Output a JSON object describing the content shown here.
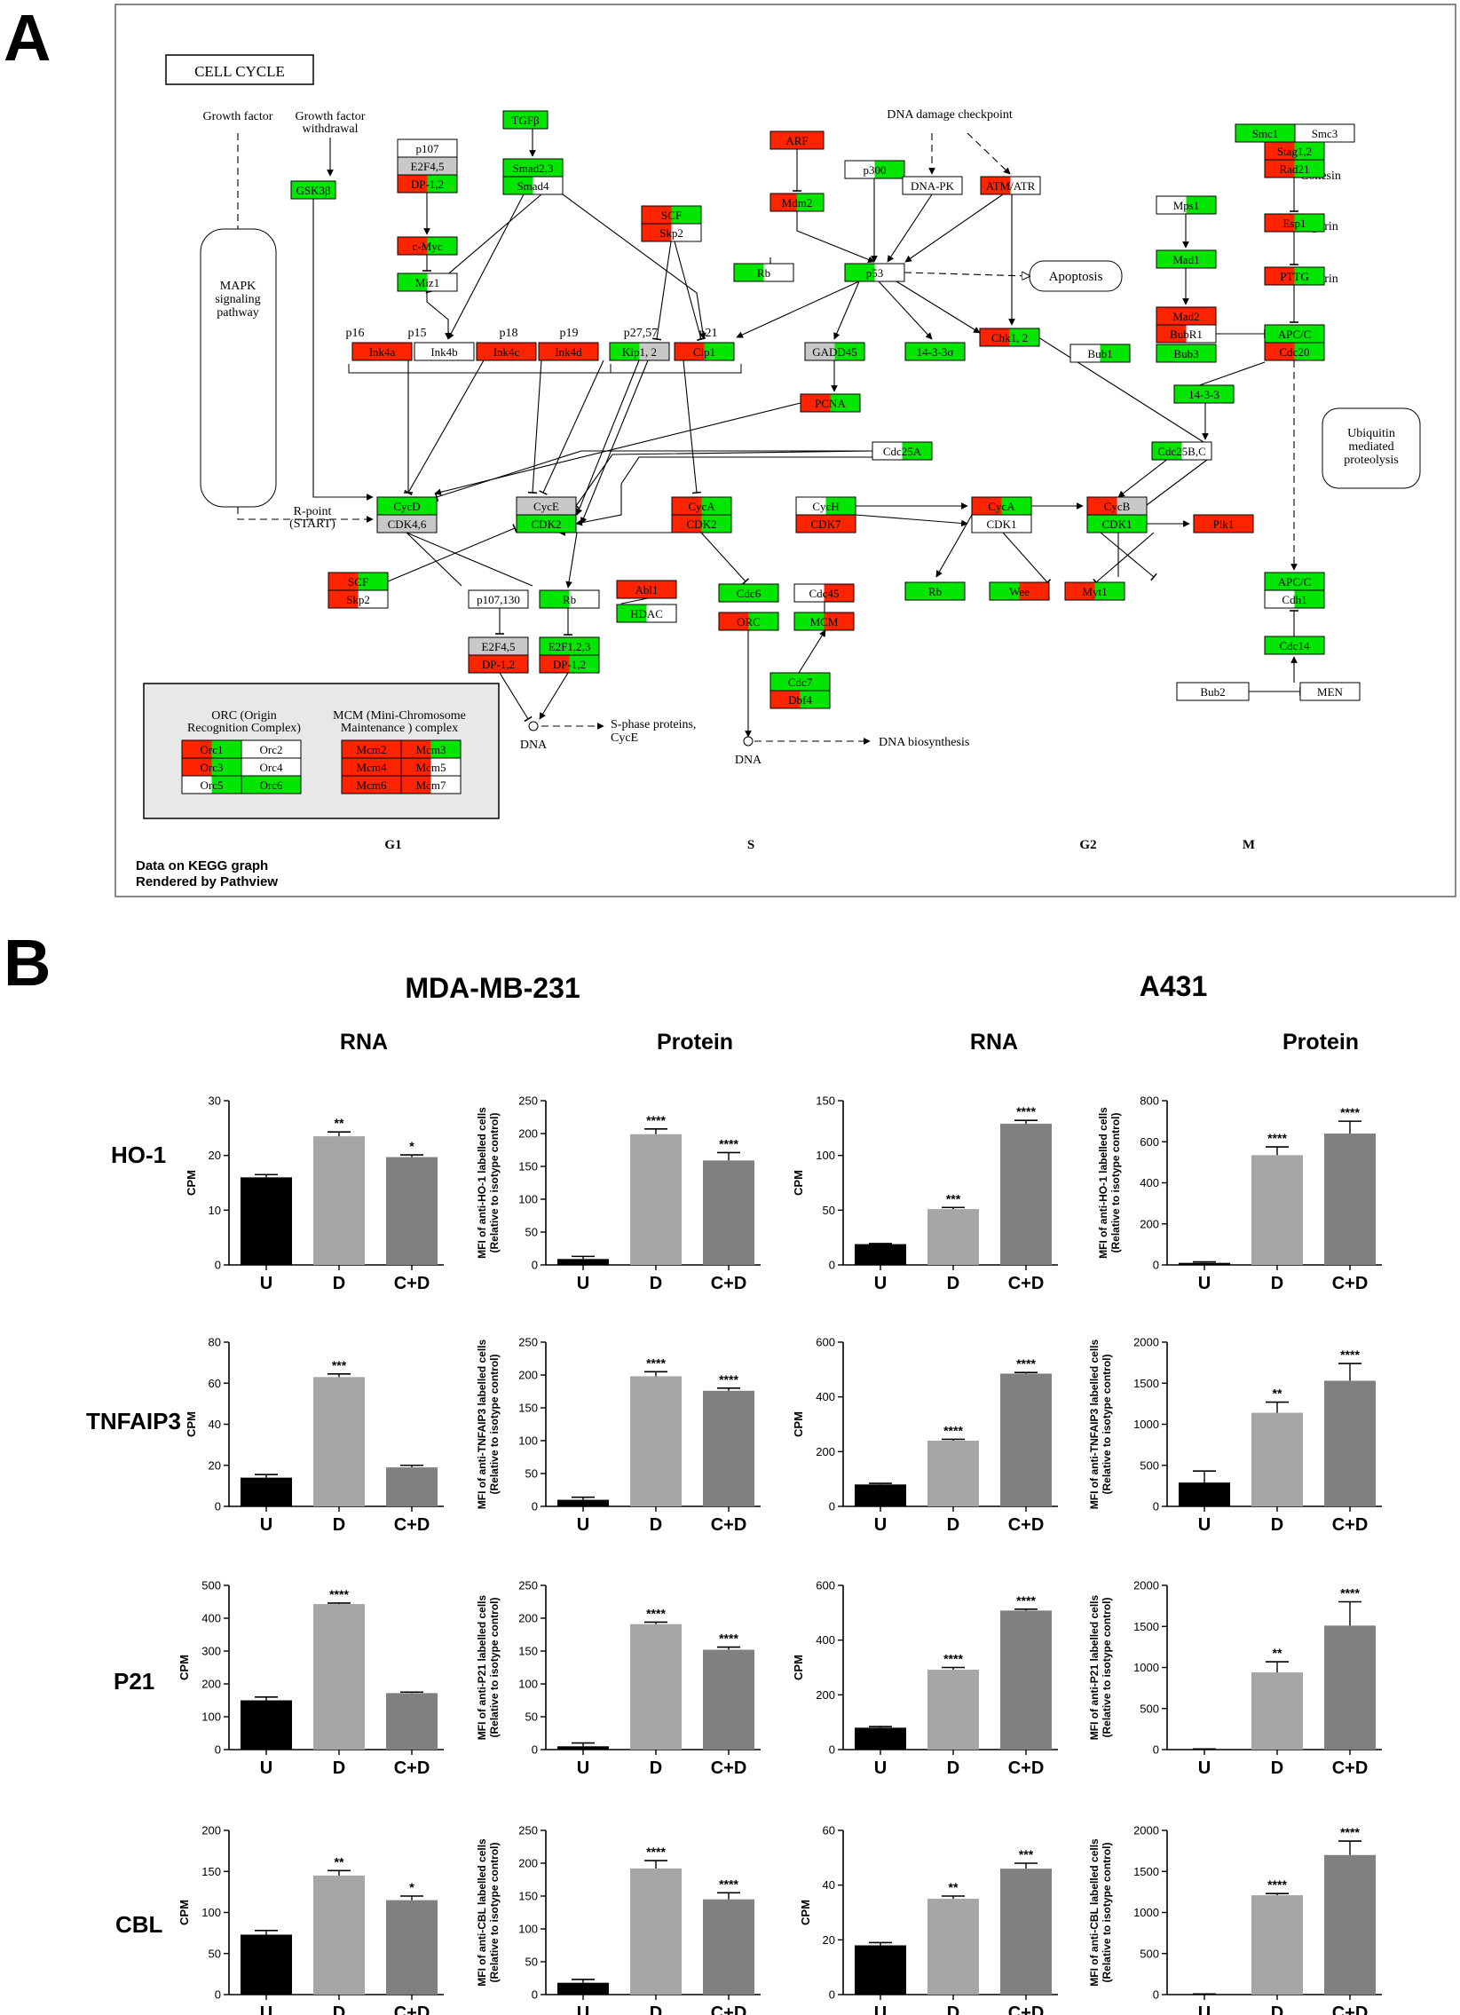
{
  "panels": {
    "a_label": "A",
    "b_label": "B"
  },
  "kegg": {
    "title": "CELL CYCLE",
    "footer_1": "Data on KEGG graph",
    "footer_2": "Rendered by Pathview",
    "phase_g1": "G1",
    "phase_s": "S",
    "phase_g2": "G2",
    "phase_m": "M",
    "labels": {
      "growth_factor": "Growth factor",
      "growth_factor_withdrawal_1": "Growth factor",
      "growth_factor_withdrawal_2": "withdrawal",
      "mapk_1": "MAPK",
      "mapk_2": "signaling",
      "mapk_3": "pathway",
      "dna_damage": "DNA damage checkpoint",
      "apoptosis": "Apoptosis",
      "cohesin": "Cohesin",
      "separin": "Separin",
      "securin": "Securin",
      "ubiquitin_1": "Ubiquitin",
      "ubiquitin_2": "mediated",
      "ubiquitin_3": "proteolysis",
      "r_point_1": "R-point",
      "r_point_2": "(START)",
      "dna_1": "DNA",
      "dna_2": "DNA",
      "s_phase_proteins_1": "S-phase proteins,",
      "s_phase_proteins_2": "CycE",
      "dna_biosynthesis": "DNA biosynthesis",
      "p16": "p16",
      "p15": "p15",
      "p18": "p18",
      "p19": "p19",
      "p27_57": "p27,57",
      "p21": "p21",
      "orc_legend_1": "ORC (Origin",
      "orc_legend_2": "Recognition Complex)",
      "mcm_legend_1": "MCM (Mini-Chromosome",
      "mcm_legend_2": "Maintenance ) complex"
    },
    "colors": {
      "red": "#ff2400",
      "green": "#00e600",
      "grey": "#c8c8c8",
      "white": "#ffffff"
    },
    "nodes": [
      {
        "t": "GSK3β",
        "c": [
          "g",
          "g"
        ]
      },
      {
        "t": "TGFβ",
        "c": [
          "g",
          "g"
        ]
      },
      {
        "t": "p107",
        "c": [
          "w",
          "w"
        ]
      },
      {
        "t": "E2F4,5",
        "c": [
          "y",
          "y"
        ]
      },
      {
        "t": "DP-1,2",
        "c": [
          "r",
          "g"
        ]
      },
      {
        "t": "Smad2,3",
        "c": [
          "g",
          "g"
        ]
      },
      {
        "t": "Smad4",
        "c": [
          "g",
          "w"
        ]
      },
      {
        "t": "c-Myc",
        "c": [
          "r",
          "g"
        ]
      },
      {
        "t": "Miz1",
        "c": [
          "g",
          "w"
        ]
      },
      {
        "t": "ARF",
        "c": [
          "r",
          "r"
        ]
      },
      {
        "t": "Mdm2",
        "c": [
          "r",
          "g"
        ]
      },
      {
        "t": "p300",
        "c": [
          "w",
          "g"
        ]
      },
      {
        "t": "DNA-PK",
        "c": [
          "w",
          "w"
        ]
      },
      {
        "t": "ATM/ATR",
        "c": [
          "r",
          "w"
        ]
      },
      {
        "t": "SCF",
        "c": [
          "r",
          "g"
        ]
      },
      {
        "t": "Skp2",
        "c": [
          "r",
          "w"
        ]
      },
      {
        "t": "Rb",
        "c": [
          "g",
          "w"
        ]
      },
      {
        "t": "p53",
        "c": [
          "g",
          "w"
        ]
      },
      {
        "t": "Ink4a",
        "c": [
          "r",
          "r"
        ]
      },
      {
        "t": "Ink4b",
        "c": [
          "w",
          "w"
        ]
      },
      {
        "t": "Ink4c",
        "c": [
          "r",
          "r"
        ]
      },
      {
        "t": "Ink4d",
        "c": [
          "r",
          "r"
        ]
      },
      {
        "t": "Kip1, 2",
        "c": [
          "g",
          "y"
        ]
      },
      {
        "t": "Cip1",
        "c": [
          "r",
          "g"
        ]
      },
      {
        "t": "GADD45",
        "c": [
          "y",
          "g"
        ]
      },
      {
        "t": "14-3-3σ",
        "c": [
          "g",
          "g"
        ]
      },
      {
        "t": "Chk1, 2",
        "c": [
          "r",
          "g"
        ]
      },
      {
        "t": "PCNA",
        "c": [
          "r",
          "g"
        ]
      },
      {
        "t": "Cdc25A",
        "c": [
          "w",
          "g"
        ]
      },
      {
        "t": "Smc1",
        "c": [
          "g",
          "g"
        ]
      },
      {
        "t": "Smc3",
        "c": [
          "w",
          "w"
        ]
      },
      {
        "t": "Stag1,2",
        "c": [
          "r",
          "g"
        ]
      },
      {
        "t": "Rad21",
        "c": [
          "r",
          "g"
        ]
      },
      {
        "t": "Mps1",
        "c": [
          "w",
          "g"
        ]
      },
      {
        "t": "Mad1",
        "c": [
          "g",
          "g"
        ]
      },
      {
        "t": "Esp1",
        "c": [
          "r",
          "g"
        ]
      },
      {
        "t": "PTTG",
        "c": [
          "r",
          "g"
        ]
      },
      {
        "t": "Mad2",
        "c": [
          "r",
          "r"
        ]
      },
      {
        "t": "BubR1",
        "c": [
          "r",
          "w"
        ]
      },
      {
        "t": "Bub1",
        "c": [
          "w",
          "g"
        ]
      },
      {
        "t": "Bub3",
        "c": [
          "g",
          "g"
        ]
      },
      {
        "t": "APC/C",
        "c": [
          "g",
          "g"
        ]
      },
      {
        "t": "Cdc20",
        "c": [
          "r",
          "g"
        ]
      },
      {
        "t": "14-3-3",
        "c": [
          "g",
          "g"
        ]
      },
      {
        "t": "Cdc25B,C",
        "c": [
          "g",
          "w"
        ]
      },
      {
        "t": "CycD",
        "c": [
          "g",
          "g"
        ]
      },
      {
        "t": "CDK4,6",
        "c": [
          "y",
          "y"
        ]
      },
      {
        "t": "CycE",
        "c": [
          "y",
          "y"
        ]
      },
      {
        "t": "CDK2",
        "c": [
          "g",
          "g"
        ]
      },
      {
        "t": "CycA",
        "c": [
          "r",
          "g"
        ]
      },
      {
        "t": "CDK2",
        "c": [
          "r",
          "g"
        ]
      },
      {
        "t": "CycH",
        "c": [
          "w",
          "g"
        ]
      },
      {
        "t": "CDK7",
        "c": [
          "r",
          "r"
        ]
      },
      {
        "t": "CycA",
        "c": [
          "r",
          "g"
        ]
      },
      {
        "t": "CDK1",
        "c": [
          "w",
          "w"
        ]
      },
      {
        "t": "CycB",
        "c": [
          "r",
          "y"
        ]
      },
      {
        "t": "CDK1",
        "c": [
          "g",
          "g"
        ]
      },
      {
        "t": "Plk1",
        "c": [
          "r",
          "r"
        ]
      },
      {
        "t": "SCF",
        "c": [
          "r",
          "g"
        ]
      },
      {
        "t": "Skp2",
        "c": [
          "r",
          "w"
        ]
      },
      {
        "t": "p107,130",
        "c": [
          "w",
          "w"
        ]
      },
      {
        "t": "Rb",
        "c": [
          "g",
          "w"
        ]
      },
      {
        "t": "Abl1",
        "c": [
          "r",
          "r"
        ]
      },
      {
        "t": "HDAC",
        "c": [
          "g",
          "w"
        ]
      },
      {
        "t": "Cdc6",
        "c": [
          "g",
          "g"
        ]
      },
      {
        "t": "Cdc45",
        "c": [
          "w",
          "r"
        ]
      },
      {
        "t": "ORC",
        "c": [
          "r",
          "g"
        ]
      },
      {
        "t": "MCM",
        "c": [
          "g",
          "r"
        ]
      },
      {
        "t": "Rb",
        "c": [
          "g",
          "g"
        ]
      },
      {
        "t": "Wee",
        "c": [
          "g",
          "r"
        ]
      },
      {
        "t": "Myt1",
        "c": [
          "r",
          "g"
        ]
      },
      {
        "t": "E2F4,5",
        "c": [
          "y",
          "y"
        ]
      },
      {
        "t": "DP-1,2",
        "c": [
          "r",
          "r"
        ]
      },
      {
        "t": "E2F1,2,3",
        "c": [
          "g",
          "g"
        ]
      },
      {
        "t": "DP-1,2",
        "c": [
          "r",
          "g"
        ]
      },
      {
        "t": "Cdc7",
        "c": [
          "g",
          "g"
        ]
      },
      {
        "t": "Dbf4",
        "c": [
          "r",
          "g"
        ]
      },
      {
        "t": "APC/C",
        "c": [
          "g",
          "g"
        ]
      },
      {
        "t": "Cdh1",
        "c": [
          "w",
          "g"
        ]
      },
      {
        "t": "Cdc14",
        "c": [
          "g",
          "g"
        ]
      },
      {
        "t": "Bub2",
        "c": [
          "w",
          "w"
        ]
      },
      {
        "t": "MEN",
        "c": [
          "w",
          "w"
        ]
      },
      {
        "t": "Orc1",
        "c": [
          "r",
          "g"
        ]
      },
      {
        "t": "Orc2",
        "c": [
          "w",
          "w"
        ]
      },
      {
        "t": "Orc3",
        "c": [
          "r",
          "g"
        ]
      },
      {
        "t": "Orc4",
        "c": [
          "w",
          "w"
        ]
      },
      {
        "t": "Orc5",
        "c": [
          "w",
          "g"
        ]
      },
      {
        "t": "Orc6",
        "c": [
          "g",
          "g"
        ]
      },
      {
        "t": "Mcm2",
        "c": [
          "r",
          "r"
        ]
      },
      {
        "t": "Mcm3",
        "c": [
          "r",
          "g"
        ]
      },
      {
        "t": "Mcm4",
        "c": [
          "r",
          "r"
        ]
      },
      {
        "t": "Mcm5",
        "c": [
          "r",
          "w"
        ]
      },
      {
        "t": "Mcm6",
        "c": [
          "r",
          "r"
        ]
      },
      {
        "t": "Mcm7",
        "c": [
          "r",
          "w"
        ]
      }
    ]
  },
  "figure_b": {
    "cell_lines": [
      "MDA-MB-231",
      "A431"
    ],
    "column_types": [
      "RNA",
      "Protein",
      "RNA",
      "Protein"
    ],
    "genes": [
      "HO-1",
      "TNFAIP3",
      "P21",
      "CBL"
    ],
    "categories": [
      "U",
      "D",
      "C+D"
    ],
    "bar_colors": [
      "#000000",
      "#a6a6a6",
      "#808080"
    ]
  },
  "chart_data": [
    {
      "type": "bar",
      "gene": "HO-1",
      "cell_line": "MDA-MB-231",
      "measure": "RNA",
      "categories": [
        "U",
        "D",
        "C+D"
      ],
      "values": [
        16,
        23.5,
        19.7
      ],
      "errors": [
        0.5,
        0.8,
        0.4
      ],
      "significance": [
        "",
        "**",
        "*"
      ],
      "ylabel": "CPM",
      "ylim": [
        0,
        30
      ],
      "yticks": [
        0,
        10,
        20,
        30
      ]
    },
    {
      "type": "bar",
      "gene": "HO-1",
      "cell_line": "MDA-MB-231",
      "measure": "Protein",
      "categories": [
        "U",
        "D",
        "C+D"
      ],
      "values": [
        9,
        199,
        159
      ],
      "errors": [
        4,
        8,
        12
      ],
      "significance": [
        "",
        "****",
        "****"
      ],
      "ylabel": "MFI of anti-HO-1 labelled cells (Relative to isotype control)",
      "ylim": [
        0,
        250
      ],
      "yticks": [
        0,
        50,
        100,
        150,
        200,
        250
      ]
    },
    {
      "type": "bar",
      "gene": "HO-1",
      "cell_line": "A431",
      "measure": "RNA",
      "categories": [
        "U",
        "D",
        "C+D"
      ],
      "values": [
        19,
        51,
        129
      ],
      "errors": [
        0.5,
        1.5,
        3
      ],
      "significance": [
        "",
        "***",
        "****"
      ],
      "ylabel": "CPM",
      "ylim": [
        0,
        150
      ],
      "yticks": [
        0,
        50,
        100,
        150
      ]
    },
    {
      "type": "bar",
      "gene": "HO-1",
      "cell_line": "A431",
      "measure": "Protein",
      "categories": [
        "U",
        "D",
        "C+D"
      ],
      "values": [
        10,
        535,
        640
      ],
      "errors": [
        5,
        40,
        60
      ],
      "significance": [
        "",
        "****",
        "****"
      ],
      "ylabel": "MFI of anti-HO-1 labelled cells (Relative to isotype control)",
      "ylim": [
        0,
        800
      ],
      "yticks": [
        0,
        200,
        400,
        600,
        800
      ]
    },
    {
      "type": "bar",
      "gene": "TNFAIP3",
      "cell_line": "MDA-MB-231",
      "measure": "RNA",
      "categories": [
        "U",
        "D",
        "C+D"
      ],
      "values": [
        14,
        63,
        19
      ],
      "errors": [
        1.5,
        1.5,
        1
      ],
      "significance": [
        "",
        "***",
        ""
      ],
      "ylabel": "CPM",
      "ylim": [
        0,
        80
      ],
      "yticks": [
        0,
        20,
        40,
        60,
        80
      ]
    },
    {
      "type": "bar",
      "gene": "TNFAIP3",
      "cell_line": "MDA-MB-231",
      "measure": "Protein",
      "categories": [
        "U",
        "D",
        "C+D"
      ],
      "values": [
        10,
        198,
        176
      ],
      "errors": [
        4,
        7,
        4
      ],
      "significance": [
        "",
        "****",
        "****"
      ],
      "ylabel": "MFI of anti-TNFAIP3 labelled cells (Relative to isotype control)",
      "ylim": [
        0,
        250
      ],
      "yticks": [
        0,
        50,
        100,
        150,
        200,
        250
      ]
    },
    {
      "type": "bar",
      "gene": "TNFAIP3",
      "cell_line": "A431",
      "measure": "RNA",
      "categories": [
        "U",
        "D",
        "C+D"
      ],
      "values": [
        80,
        240,
        485
      ],
      "errors": [
        4,
        5,
        4
      ],
      "significance": [
        "",
        "****",
        "****"
      ],
      "ylabel": "CPM",
      "ylim": [
        0,
        600
      ],
      "yticks": [
        0,
        200,
        400,
        600
      ]
    },
    {
      "type": "bar",
      "gene": "TNFAIP3",
      "cell_line": "A431",
      "measure": "Protein",
      "categories": [
        "U",
        "D",
        "C+D"
      ],
      "values": [
        290,
        1140,
        1530
      ],
      "errors": [
        140,
        130,
        210
      ],
      "significance": [
        "",
        "**",
        "****"
      ],
      "ylabel": "MFI of anti-TNFAIP3 labelled cells (Relative to isotype control)",
      "ylim": [
        0,
        2000
      ],
      "yticks": [
        0,
        500,
        1000,
        1500,
        2000
      ]
    },
    {
      "type": "bar",
      "gene": "P21",
      "cell_line": "MDA-MB-231",
      "measure": "RNA",
      "categories": [
        "U",
        "D",
        "C+D"
      ],
      "values": [
        150,
        443,
        172
      ],
      "errors": [
        10,
        3,
        3
      ],
      "significance": [
        "",
        "****",
        ""
      ],
      "ylabel": "CPM",
      "ylim": [
        0,
        500
      ],
      "yticks": [
        0,
        100,
        200,
        300,
        400,
        500
      ]
    },
    {
      "type": "bar",
      "gene": "P21",
      "cell_line": "MDA-MB-231",
      "measure": "Protein",
      "categories": [
        "U",
        "D",
        "C+D"
      ],
      "values": [
        5,
        191,
        152
      ],
      "errors": [
        5,
        3,
        4
      ],
      "significance": [
        "",
        "****",
        "****"
      ],
      "ylabel": "MFI of anti-P21 labelled cells (Relative to isotype control)",
      "ylim": [
        0,
        250
      ],
      "yticks": [
        0,
        50,
        100,
        150,
        200,
        250
      ]
    },
    {
      "type": "bar",
      "gene": "P21",
      "cell_line": "A431",
      "measure": "RNA",
      "categories": [
        "U",
        "D",
        "C+D"
      ],
      "values": [
        80,
        292,
        508
      ],
      "errors": [
        4,
        8,
        5
      ],
      "significance": [
        "",
        "****",
        "****"
      ],
      "ylabel": "CPM",
      "ylim": [
        0,
        600
      ],
      "yticks": [
        0,
        200,
        400,
        600
      ]
    },
    {
      "type": "bar",
      "gene": "P21",
      "cell_line": "A431",
      "measure": "Protein",
      "categories": [
        "U",
        "D",
        "C+D"
      ],
      "values": [
        5,
        940,
        1510
      ],
      "errors": [
        3,
        130,
        290
      ],
      "significance": [
        "",
        "**",
        "****"
      ],
      "ylabel": "MFI of anti-P21 labelled cells (Relative to isotype control)",
      "ylim": [
        0,
        2000
      ],
      "yticks": [
        0,
        500,
        1000,
        1500,
        2000
      ]
    },
    {
      "type": "bar",
      "gene": "CBL",
      "cell_line": "MDA-MB-231",
      "measure": "RNA",
      "categories": [
        "U",
        "D",
        "C+D"
      ],
      "values": [
        73,
        145,
        115
      ],
      "errors": [
        5,
        6,
        5
      ],
      "significance": [
        "",
        "**",
        "*"
      ],
      "ylabel": "CPM",
      "ylim": [
        0,
        200
      ],
      "yticks": [
        0,
        50,
        100,
        150,
        200
      ]
    },
    {
      "type": "bar",
      "gene": "CBL",
      "cell_line": "MDA-MB-231",
      "measure": "Protein",
      "categories": [
        "U",
        "D",
        "C+D"
      ],
      "values": [
        18,
        192,
        145
      ],
      "errors": [
        5,
        12,
        10
      ],
      "significance": [
        "",
        "****",
        "****"
      ],
      "ylabel": "MFI of anti-CBL labelled cells (Relative to isotype control)",
      "ylim": [
        0,
        250
      ],
      "yticks": [
        0,
        50,
        100,
        150,
        200,
        250
      ]
    },
    {
      "type": "bar",
      "gene": "CBL",
      "cell_line": "A431",
      "measure": "RNA",
      "categories": [
        "U",
        "D",
        "C+D"
      ],
      "values": [
        18,
        35,
        46
      ],
      "errors": [
        1,
        1,
        2
      ],
      "significance": [
        "",
        "**",
        "***"
      ],
      "ylabel": "CPM",
      "ylim": [
        0,
        60
      ],
      "yticks": [
        0,
        20,
        40,
        60
      ]
    },
    {
      "type": "bar",
      "gene": "CBL",
      "cell_line": "A431",
      "measure": "Protein",
      "categories": [
        "U",
        "D",
        "C+D"
      ],
      "values": [
        5,
        1210,
        1700
      ],
      "errors": [
        3,
        20,
        170
      ],
      "significance": [
        "",
        "****",
        "****"
      ],
      "ylabel": "MFI of anti-CBL labelled cells (Relative to isotype control)",
      "ylim": [
        0,
        2000
      ],
      "yticks": [
        0,
        500,
        1000,
        1500,
        2000
      ]
    }
  ]
}
